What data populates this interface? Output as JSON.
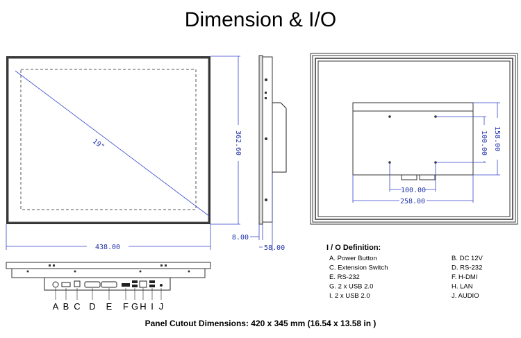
{
  "header": {
    "title": "Dimension & I/O"
  },
  "front_view": {
    "diagonal": "19\"",
    "height": "362.60",
    "width": "438.00"
  },
  "side_view": {
    "bezel": "8.00",
    "depth": "58.00"
  },
  "back_view": {
    "vesa_v": "100.00",
    "height": "158.00",
    "vesa_h": "100.00",
    "width": "258.00"
  },
  "io_ports": [
    "A",
    "B",
    "C",
    "D",
    "E",
    "F",
    "G",
    "H",
    "I",
    "J"
  ],
  "io_definition": {
    "title": "I / O Definition:",
    "items": [
      "A. Power Button",
      "B. DC 12V",
      "C. Extension Switch",
      "D. RS-232",
      "E. RS-232",
      "F. H-DMI",
      "G. 2 x USB 2.0",
      "H. LAN",
      "I. 2 x USB 2.0",
      "J. AUDIO"
    ]
  },
  "footer": "Panel Cutout Dimensions: 420 x 345 mm (16.54 x 13.58 in )"
}
